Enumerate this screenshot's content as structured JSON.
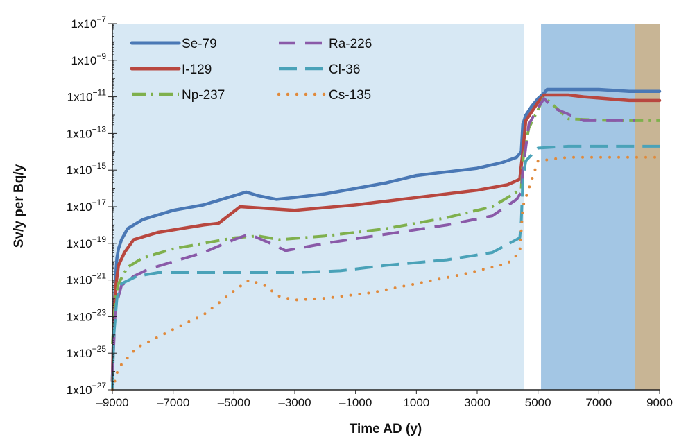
{
  "chart_data": {
    "type": "line",
    "xlabel": "Time AD (y)",
    "ylabel": "Sv/y per Bq/y",
    "xlim": [
      -9000,
      9000
    ],
    "ylim_exponent": [
      -27,
      -7
    ],
    "y_scale": "log",
    "x_ticks": [
      "–9000",
      "–7000",
      "–5000",
      "–3000",
      "–1000",
      "1000",
      "3000",
      "5000",
      "7000",
      "9000"
    ],
    "x_tick_values": [
      -9000,
      -7000,
      -5000,
      -3000,
      -1000,
      1000,
      3000,
      5000,
      7000,
      9000
    ],
    "y_ticks": [
      {
        "exp": -7,
        "base": "1x10",
        "sup": "−7"
      },
      {
        "exp": -9,
        "base": "1x10",
        "sup": "−9"
      },
      {
        "exp": -11,
        "base": "1x10",
        "sup": "−11"
      },
      {
        "exp": -13,
        "base": "1x10",
        "sup": "−13"
      },
      {
        "exp": -15,
        "base": "1x10",
        "sup": "−15"
      },
      {
        "exp": -17,
        "base": "1x10",
        "sup": "−17"
      },
      {
        "exp": -19,
        "base": "1x10",
        "sup": "−19"
      },
      {
        "exp": -21,
        "base": "1x10",
        "sup": "−21"
      },
      {
        "exp": -23,
        "base": "1x10",
        "sup": "−23"
      },
      {
        "exp": -25,
        "base": "1x10",
        "sup": "−25"
      },
      {
        "exp": -27,
        "base": "1x10",
        "sup": "−27"
      }
    ],
    "background_bands": [
      {
        "from": -9000,
        "to": 4550,
        "color": "#d7e8f4"
      },
      {
        "from": 4550,
        "to": 5100,
        "color": "#ffffff"
      },
      {
        "from": 5100,
        "to": 8200,
        "color": "#a3c6e4"
      },
      {
        "from": 8200,
        "to": 9000,
        "color": "#c8b595"
      }
    ],
    "grid": false,
    "legend_position": "top-left",
    "series": [
      {
        "name": "Se-79",
        "color": "#4a78b5",
        "style": "solid",
        "points": [
          [
            -9000,
            -26.5
          ],
          [
            -8950,
            -23
          ],
          [
            -8900,
            -21
          ],
          [
            -8850,
            -19.8
          ],
          [
            -8800,
            -19.3
          ],
          [
            -8700,
            -18.8
          ],
          [
            -8500,
            -18.2
          ],
          [
            -8000,
            -17.7
          ],
          [
            -7000,
            -17.2
          ],
          [
            -6000,
            -16.9
          ],
          [
            -5000,
            -16.4
          ],
          [
            -4600,
            -16.2
          ],
          [
            -4200,
            -16.4
          ],
          [
            -3600,
            -16.6
          ],
          [
            -3000,
            -16.5
          ],
          [
            -2000,
            -16.3
          ],
          [
            -1000,
            -16.0
          ],
          [
            0,
            -15.7
          ],
          [
            1000,
            -15.3
          ],
          [
            2000,
            -15.1
          ],
          [
            3000,
            -14.9
          ],
          [
            3800,
            -14.6
          ],
          [
            4300,
            -14.3
          ],
          [
            4450,
            -14.0
          ],
          [
            4500,
            -12.5
          ],
          [
            4600,
            -12.0
          ],
          [
            4800,
            -11.5
          ],
          [
            5000,
            -11.1
          ],
          [
            5200,
            -10.8
          ],
          [
            5300,
            -10.6
          ],
          [
            6000,
            -10.6
          ],
          [
            7000,
            -10.6
          ],
          [
            8000,
            -10.7
          ],
          [
            9000,
            -10.7
          ]
        ]
      },
      {
        "name": "I-129",
        "color": "#b8473f",
        "style": "solid",
        "points": [
          [
            -9000,
            -26.5
          ],
          [
            -8950,
            -23
          ],
          [
            -8900,
            -21.5
          ],
          [
            -8800,
            -20.2
          ],
          [
            -8600,
            -19.5
          ],
          [
            -8300,
            -18.8
          ],
          [
            -7500,
            -18.4
          ],
          [
            -6000,
            -18.0
          ],
          [
            -5500,
            -17.9
          ],
          [
            -4800,
            -17.0
          ],
          [
            -3000,
            -17.2
          ],
          [
            -1000,
            -16.9
          ],
          [
            1000,
            -16.5
          ],
          [
            3000,
            -16.1
          ],
          [
            4000,
            -15.8
          ],
          [
            4400,
            -15.5
          ],
          [
            4500,
            -14.0
          ],
          [
            4600,
            -12.3
          ],
          [
            4800,
            -11.8
          ],
          [
            5000,
            -11.3
          ],
          [
            5200,
            -10.9
          ],
          [
            6000,
            -10.9
          ],
          [
            6500,
            -11.0
          ],
          [
            8000,
            -11.2
          ],
          [
            9000,
            -11.2
          ]
        ]
      },
      {
        "name": "Np-237",
        "color": "#7fb04d",
        "style": "dashdot",
        "points": [
          [
            -9000,
            -24.5
          ],
          [
            -8900,
            -22.0
          ],
          [
            -8800,
            -21.2
          ],
          [
            -8500,
            -20.3
          ],
          [
            -8000,
            -19.8
          ],
          [
            -7000,
            -19.3
          ],
          [
            -6000,
            -19.0
          ],
          [
            -5000,
            -18.7
          ],
          [
            -4200,
            -18.6
          ],
          [
            -3500,
            -18.8
          ],
          [
            -2000,
            -18.6
          ],
          [
            0,
            -18.2
          ],
          [
            2000,
            -17.6
          ],
          [
            3500,
            -17.0
          ],
          [
            4200,
            -16.3
          ],
          [
            4450,
            -16.0
          ],
          [
            4500,
            -14.5
          ],
          [
            4700,
            -12.7
          ],
          [
            5000,
            -11.7
          ],
          [
            5200,
            -11.0
          ],
          [
            6000,
            -12.2
          ],
          [
            7500,
            -12.3
          ],
          [
            9000,
            -12.3
          ]
        ]
      },
      {
        "name": "Ra-226",
        "color": "#8a5aa8",
        "style": "dash",
        "points": [
          [
            -9000,
            -26.3
          ],
          [
            -8900,
            -22.5
          ],
          [
            -8700,
            -21.3
          ],
          [
            -8300,
            -20.8
          ],
          [
            -7800,
            -20.4
          ],
          [
            -7000,
            -20.0
          ],
          [
            -6000,
            -19.5
          ],
          [
            -5000,
            -18.8
          ],
          [
            -4500,
            -18.5
          ],
          [
            -3800,
            -19.0
          ],
          [
            -3300,
            -19.4
          ],
          [
            -2000,
            -19.0
          ],
          [
            0,
            -18.5
          ],
          [
            2000,
            -18.0
          ],
          [
            3500,
            -17.5
          ],
          [
            4300,
            -16.6
          ],
          [
            4450,
            -16.2
          ],
          [
            4500,
            -15.0
          ],
          [
            4700,
            -12.5
          ],
          [
            5000,
            -11.6
          ],
          [
            5200,
            -11.1
          ],
          [
            5500,
            -11.6
          ],
          [
            6500,
            -12.3
          ],
          [
            8200,
            -12.3
          ]
        ]
      },
      {
        "name": "Cl-36",
        "color": "#4aa2b8",
        "style": "longdash",
        "points": [
          [
            -9000,
            -27
          ],
          [
            -8950,
            -24.0
          ],
          [
            -8850,
            -22.0
          ],
          [
            -8700,
            -21.2
          ],
          [
            -8200,
            -20.8
          ],
          [
            -7500,
            -20.6
          ],
          [
            -5000,
            -20.6
          ],
          [
            -3000,
            -20.6
          ],
          [
            -1500,
            -20.5
          ],
          [
            0,
            -20.2
          ],
          [
            2000,
            -19.9
          ],
          [
            3500,
            -19.5
          ],
          [
            4400,
            -18.7
          ],
          [
            4450,
            -17.8
          ],
          [
            4500,
            -15.5
          ],
          [
            4600,
            -14.5
          ],
          [
            5000,
            -13.8
          ],
          [
            6000,
            -13.7
          ],
          [
            7500,
            -13.7
          ],
          [
            9000,
            -13.7
          ]
        ]
      },
      {
        "name": "Cs-135",
        "color": "#e08a3c",
        "style": "dot",
        "points": [
          [
            -9000,
            -27
          ],
          [
            -8800,
            -25.8
          ],
          [
            -8200,
            -24.7
          ],
          [
            -7000,
            -23.7
          ],
          [
            -6000,
            -22.9
          ],
          [
            -5000,
            -21.6
          ],
          [
            -4500,
            -21.0
          ],
          [
            -4000,
            -21.3
          ],
          [
            -3500,
            -21.9
          ],
          [
            -3000,
            -22.1
          ],
          [
            -2000,
            -22.0
          ],
          [
            -500,
            -21.7
          ],
          [
            1000,
            -21.2
          ],
          [
            2500,
            -20.7
          ],
          [
            4000,
            -20.1
          ],
          [
            4400,
            -19.5
          ],
          [
            4500,
            -17.0
          ],
          [
            5000,
            -14.5
          ],
          [
            6000,
            -14.3
          ],
          [
            7000,
            -14.3
          ],
          [
            8000,
            -14.3
          ],
          [
            9000,
            -14.3
          ]
        ]
      }
    ]
  }
}
